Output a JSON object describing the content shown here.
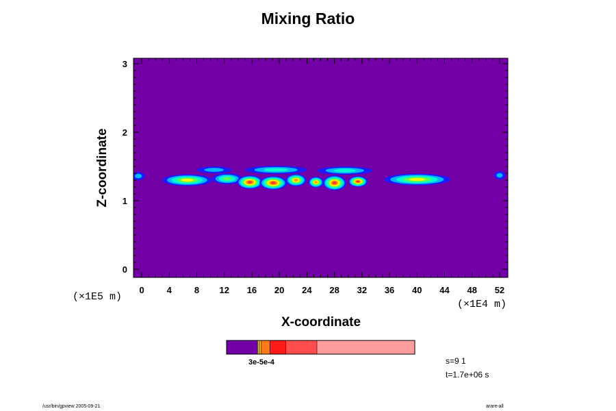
{
  "chart_data": {
    "type": "heatmap",
    "title": "Mixing Ratio",
    "xlabel": "X-coordinate",
    "ylabel": "Z-coordinate",
    "x_scale_note": "(×1E4 m)",
    "y_scale_note": "(×1E5 m)",
    "xlim": [
      -1.2,
      53.2
    ],
    "ylim": [
      -0.12,
      3.08
    ],
    "x_ticks": [
      "0",
      "4",
      "8",
      "12",
      "16",
      "20",
      "24",
      "28",
      "32",
      "36",
      "40",
      "44",
      "48",
      "52"
    ],
    "y_ticks": [
      "0",
      "1",
      "2",
      "3"
    ],
    "background_color": "#7300a6",
    "field_color_sequence": [
      "#1a1aff",
      "#00b7ff",
      "#00ffcf",
      "#59ff59",
      "#ffff00",
      "#ff9900",
      "#ff3030"
    ],
    "colorbar": {
      "tick_label": "3e-5e-4",
      "colors": [
        "#7300a6",
        "#ffd700",
        "#ffa500",
        "#ff7a1a",
        "#ff1a1a",
        "#ff4d4d",
        "#ff9e9e"
      ],
      "fractions": [
        0.165,
        0.008,
        0.012,
        0.045,
        0.085,
        0.165,
        0.52
      ]
    },
    "blobs": [
      {
        "x": -0.5,
        "z": 1.36,
        "rx": 0.9,
        "rz": 0.06,
        "peak": 1
      },
      {
        "x": 6.6,
        "z": 1.3,
        "rx": 3.6,
        "rz": 0.085,
        "peak": 4
      },
      {
        "x": 12.4,
        "z": 1.32,
        "rx": 2.2,
        "rz": 0.08,
        "peak": 3
      },
      {
        "x": 15.7,
        "z": 1.27,
        "rx": 1.9,
        "rz": 0.1,
        "peak": 6
      },
      {
        "x": 19.1,
        "z": 1.26,
        "rx": 2.0,
        "rz": 0.1,
        "peak": 6
      },
      {
        "x": 22.4,
        "z": 1.3,
        "rx": 1.5,
        "rz": 0.09,
        "peak": 5
      },
      {
        "x": 25.3,
        "z": 1.27,
        "rx": 1.1,
        "rz": 0.08,
        "peak": 5
      },
      {
        "x": 28.0,
        "z": 1.26,
        "rx": 1.7,
        "rz": 0.11,
        "peak": 6
      },
      {
        "x": 31.4,
        "z": 1.28,
        "rx": 1.4,
        "rz": 0.08,
        "peak": 6
      },
      {
        "x": 40.0,
        "z": 1.31,
        "rx": 4.8,
        "rz": 0.085,
        "peak": 4
      },
      {
        "x": 52.0,
        "z": 1.37,
        "rx": 0.8,
        "rz": 0.06,
        "peak": 1
      }
    ],
    "envelope": [
      {
        "x": 10.5,
        "z": 1.45,
        "rx": 2.5,
        "rz": 0.05,
        "peak": 1
      },
      {
        "x": 19.5,
        "z": 1.45,
        "rx": 4.5,
        "rz": 0.06,
        "peak": 2
      },
      {
        "x": 29.5,
        "z": 1.44,
        "rx": 4.0,
        "rz": 0.06,
        "peak": 2
      }
    ]
  },
  "info": {
    "step": "s=9 1",
    "time": "t=1.7e+06 s"
  },
  "footer": {
    "left": "/usr/bin/gpview 2005-09-21",
    "right": "arare-all"
  }
}
